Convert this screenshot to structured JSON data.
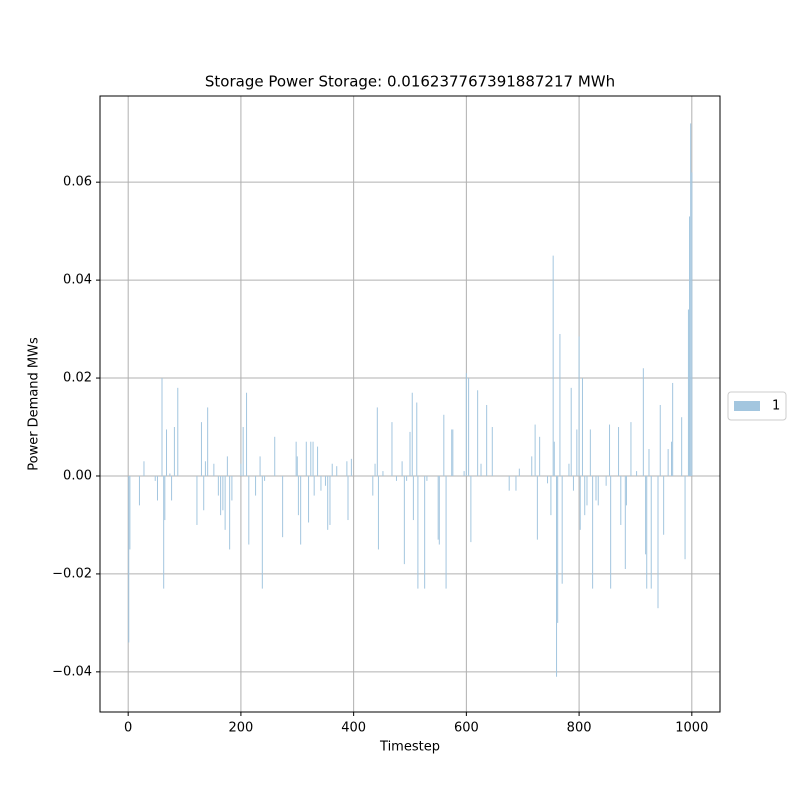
{
  "chart_data": {
    "type": "bar",
    "title": "Storage Power Storage: 0.016237767391887217 MWh",
    "x_label": "Timestep",
    "y_label": "Power Demand MWs",
    "grid": true,
    "legend": "center right outside",
    "xlim": [
      -50,
      1050
    ],
    "xticks": [
      0,
      200,
      400,
      600,
      800,
      1000
    ],
    "ylim": [
      -0.0482,
      0.0776
    ],
    "yticks": [
      {
        "value": -0.04,
        "label": "−0.04"
      },
      {
        "value": -0.02,
        "label": "−0.02"
      },
      {
        "value": 0,
        "label": "0.00"
      },
      {
        "value": 0.02,
        "label": "0.02"
      },
      {
        "value": 0.04,
        "label": "0.04"
      },
      {
        "value": 0.06,
        "label": "0.06"
      }
    ],
    "x": [
      1,
      3,
      20,
      28,
      48,
      52,
      60,
      63,
      65,
      68,
      74,
      77,
      82,
      88,
      122,
      130,
      134,
      137,
      141,
      152,
      160,
      164,
      168,
      172,
      176,
      180,
      184,
      200,
      204,
      210,
      214,
      226,
      234,
      238,
      242,
      260,
      274,
      298,
      300,
      302,
      306,
      316,
      320,
      324,
      328,
      330,
      336,
      342,
      350,
      354,
      358,
      362,
      370,
      388,
      390,
      396,
      434,
      438,
      442,
      444,
      452,
      468,
      476,
      486,
      490,
      494,
      500,
      504,
      506,
      512,
      514,
      526,
      530,
      550,
      552,
      560,
      564,
      574,
      576,
      596,
      600,
      604,
      608,
      620,
      626,
      636,
      646,
      676,
      688,
      694,
      716,
      722,
      726,
      730,
      744,
      750,
      754,
      756,
      760,
      762,
      766,
      770,
      782,
      786,
      790,
      796,
      800,
      802,
      806,
      810,
      814,
      820,
      824,
      830,
      834,
      848,
      854,
      856,
      870,
      874,
      882,
      884,
      892,
      902,
      914,
      918,
      920,
      924,
      928,
      940,
      944,
      950,
      958,
      964,
      966,
      982,
      988,
      994,
      996,
      998,
      1000
    ],
    "series": [
      {
        "name": "1",
        "color": "#a3c6df",
        "values": [
          -0.034,
          -0.015,
          -0.006,
          0.003,
          -0.001,
          -0.005,
          0.02,
          -0.023,
          -0.009,
          0.0095,
          0.0005,
          -0.005,
          0.01,
          0.018,
          -0.01,
          0.011,
          -0.007,
          0.003,
          0.014,
          0.0025,
          -0.004,
          -0.008,
          -0.007,
          -0.011,
          0.004,
          -0.015,
          -0.005,
          0.0025,
          0.01,
          0.017,
          -0.014,
          -0.004,
          0.004,
          -0.023,
          -0.001,
          0.008,
          -0.0125,
          0.007,
          0.004,
          -0.008,
          -0.014,
          0.007,
          -0.0095,
          0.007,
          0.007,
          -0.004,
          0.006,
          -0.003,
          -0.002,
          -0.011,
          -0.01,
          0.0025,
          0.002,
          0.003,
          -0.009,
          0.0035,
          -0.004,
          0.0025,
          0.014,
          -0.015,
          0.001,
          0.011,
          -0.001,
          0.003,
          -0.018,
          -0.001,
          0.009,
          0.017,
          -0.009,
          0.015,
          -0.023,
          -0.023,
          -0.001,
          -0.013,
          -0.014,
          0.0125,
          -0.023,
          0.0095,
          0.0095,
          0.001,
          0.021,
          0.02,
          -0.0135,
          0.0175,
          0.0025,
          0.0145,
          0.01,
          -0.003,
          -0.003,
          0.0015,
          0.004,
          0.0105,
          -0.013,
          0.008,
          -0.0015,
          -0.008,
          0.045,
          0.007,
          -0.041,
          -0.03,
          0.029,
          -0.022,
          0.0025,
          0.018,
          -0.003,
          0.0095,
          0.0285,
          -0.011,
          0.02,
          -0.008,
          -0.006,
          0.0095,
          -0.023,
          -0.005,
          -0.006,
          -0.002,
          0.0105,
          -0.023,
          0.01,
          -0.01,
          -0.019,
          -0.006,
          0.011,
          0.001,
          0.022,
          -0.016,
          -0.023,
          0.0055,
          -0.023,
          -0.027,
          0.0145,
          -0.012,
          0.0055,
          0.007,
          0.019,
          0.012,
          -0.017,
          0.034,
          0.053,
          0.072,
          0.062
        ]
      }
    ]
  }
}
